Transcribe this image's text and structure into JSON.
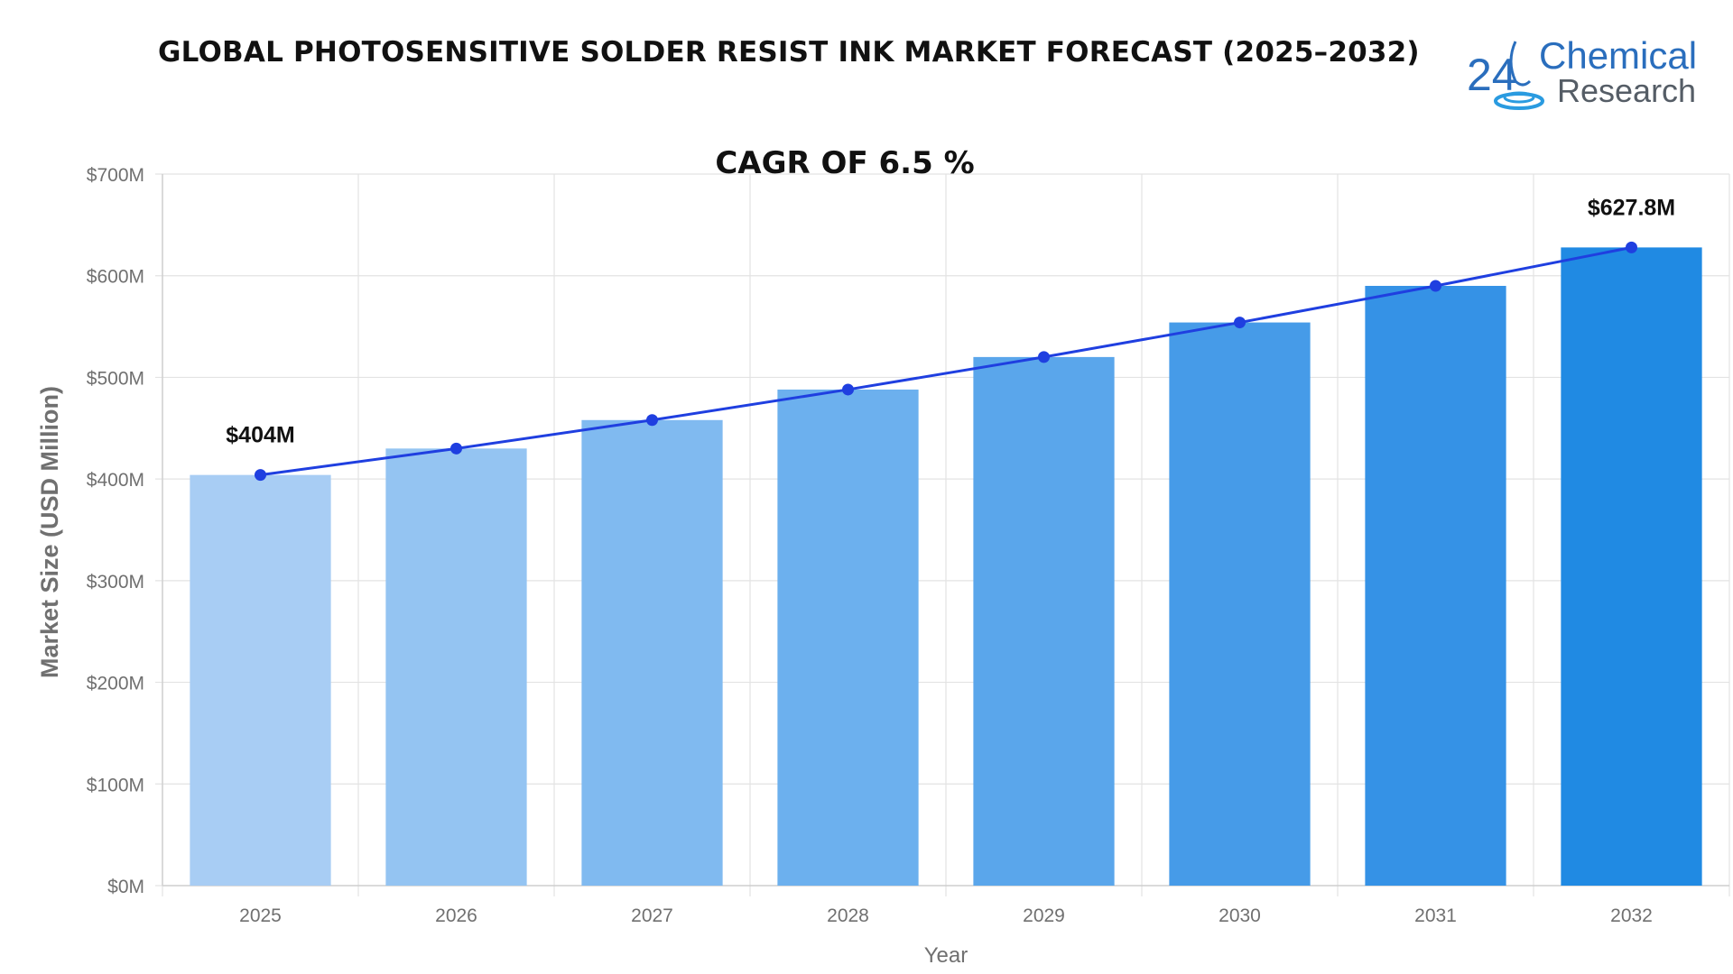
{
  "header": {
    "title": "GLOBAL PHOTOSENSITIVE SOLDER RESIST INK MARKET FORECAST (2025–2032)",
    "logo": {
      "text_1": "Chemical",
      "text_2": "Research",
      "number": "24"
    }
  },
  "colors": {
    "line": "#1f3fe0",
    "bars": [
      "#a8cdf4",
      "#94c4f2",
      "#80baf0",
      "#6cb0ee",
      "#5aa6eb",
      "#469be8",
      "#3592e6",
      "#208ae3"
    ],
    "grid": "#e3e3e3",
    "axis_text": "#707070"
  },
  "chart_data": {
    "type": "bar",
    "title": "CAGR OF 6.5 %",
    "xlabel": "Year",
    "ylabel": "Market Size (USD Million)",
    "categories": [
      "2025",
      "2026",
      "2027",
      "2028",
      "2029",
      "2030",
      "2031",
      "2032"
    ],
    "series": [
      {
        "type": "bar",
        "values": [
          404,
          430,
          458,
          488,
          520,
          554,
          590,
          627.8
        ]
      },
      {
        "type": "line",
        "values": [
          404,
          430,
          458,
          488,
          520,
          554,
          590,
          627.8
        ]
      }
    ],
    "ylim": [
      0,
      700
    ],
    "y_ticks": [
      0,
      100,
      200,
      300,
      400,
      500,
      600,
      700
    ],
    "y_tick_labels": [
      "$0M",
      "$100M",
      "$200M",
      "$300M",
      "$400M",
      "$500M",
      "$600M",
      "$700M"
    ],
    "data_labels": [
      {
        "category": "2025",
        "text": "$404M"
      },
      {
        "category": "2032",
        "text": "$627.8M"
      }
    ],
    "grid": true,
    "legend": "none"
  }
}
